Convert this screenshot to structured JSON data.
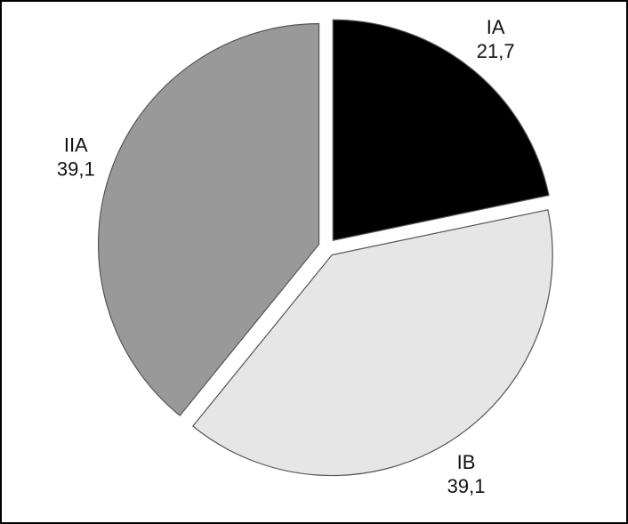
{
  "chart_data": {
    "type": "pie",
    "categories": [
      "IA",
      "IB",
      "IIA"
    ],
    "values": [
      21.7,
      39.1,
      39.1
    ],
    "value_labels": [
      "21,7",
      "39,1",
      "39,1"
    ],
    "colors": [
      "#000000",
      "#e6e6e6",
      "#999999"
    ]
  }
}
